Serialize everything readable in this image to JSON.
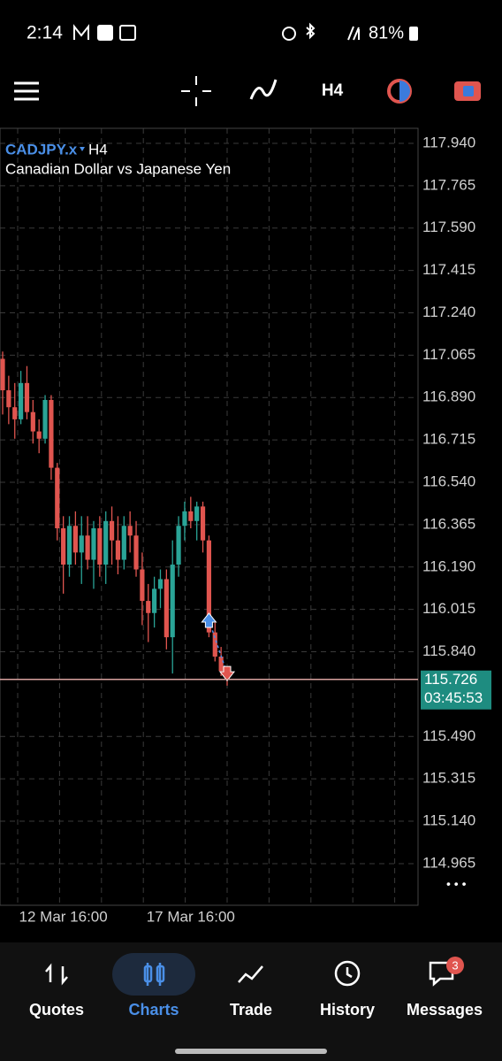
{
  "status_bar": {
    "time": "2:14",
    "battery": "81%"
  },
  "toolbar": {
    "timeframe": "H4"
  },
  "chart": {
    "type": "candlestick",
    "symbol": "CADJPY.x",
    "timeframe": "H4",
    "description": "Canadian Dollar vs Japanese Yen",
    "up_color": "#2aa497",
    "down_color": "#e0554f",
    "grid": true,
    "ylim": [
      114.793,
      118.002
    ],
    "yticks": [
      {
        "value": 117.94,
        "label": "117.940"
      },
      117.765,
      {
        "value": 117.59,
        "label": "117.590"
      },
      117.415,
      {
        "value": 117.24,
        "label": "117.240"
      },
      117.065,
      {
        "value": 116.89,
        "label": "116.890"
      },
      116.715,
      {
        "value": 116.54,
        "label": "116.540"
      },
      116.365,
      {
        "value": 116.19,
        "label": "116.190"
      },
      116.015,
      {
        "value": 115.84,
        "label": "115.840"
      },
      {
        "value": 115.49,
        "label": "115.490"
      },
      115.315,
      {
        "value": 115.14,
        "label": "115.140"
      },
      114.965
    ],
    "categories": [
      null,
      null,
      null,
      null,
      null,
      null,
      null,
      null,
      null,
      null,
      "12 Mar 16:00",
      null,
      null,
      null,
      null,
      null,
      null,
      null,
      null,
      null,
      null,
      null,
      null,
      null,
      null,
      null,
      null,
      null,
      null,
      null,
      null,
      "17 Mar 16:00",
      null,
      null,
      null,
      null,
      null,
      null
    ],
    "candles": [
      [
        117.05,
        117.08,
        116.82,
        116.92
      ],
      [
        116.92,
        116.98,
        116.78,
        116.85
      ],
      [
        116.85,
        116.95,
        116.72,
        116.8
      ],
      [
        116.8,
        117.0,
        116.78,
        116.95
      ],
      [
        116.95,
        117.02,
        116.8,
        116.83
      ],
      [
        116.83,
        116.88,
        116.7,
        116.75
      ],
      [
        116.75,
        116.8,
        116.66,
        116.72
      ],
      [
        116.72,
        116.9,
        116.7,
        116.88
      ],
      [
        116.88,
        116.9,
        116.55,
        116.6
      ],
      [
        116.6,
        116.62,
        116.3,
        116.35
      ],
      [
        116.35,
        116.4,
        116.08,
        116.2
      ],
      [
        116.2,
        116.4,
        116.15,
        116.36
      ],
      [
        116.36,
        116.42,
        116.2,
        116.25
      ],
      [
        116.25,
        116.4,
        116.12,
        116.32
      ],
      [
        116.32,
        116.4,
        116.18,
        116.22
      ],
      [
        116.22,
        116.38,
        116.1,
        116.35
      ],
      [
        116.35,
        116.4,
        116.15,
        116.2
      ],
      [
        116.2,
        116.42,
        116.12,
        116.38
      ],
      [
        116.38,
        116.44,
        116.2,
        116.3
      ],
      [
        116.3,
        116.4,
        116.16,
        116.22
      ],
      [
        116.22,
        116.4,
        116.18,
        116.36
      ],
      [
        116.36,
        116.42,
        116.25,
        116.32
      ],
      [
        116.32,
        116.38,
        116.15,
        116.18
      ],
      [
        116.18,
        116.25,
        115.95,
        116.05
      ],
      [
        116.05,
        116.12,
        115.88,
        116.0
      ],
      [
        116.0,
        116.15,
        115.94,
        116.1
      ],
      [
        116.1,
        116.18,
        116.02,
        116.14
      ],
      [
        116.14,
        116.18,
        115.85,
        115.9
      ],
      [
        115.9,
        116.3,
        115.75,
        116.2
      ],
      [
        116.2,
        116.4,
        116.15,
        116.36
      ],
      [
        116.36,
        116.46,
        116.3,
        116.42
      ],
      [
        116.42,
        116.48,
        116.35,
        116.38
      ],
      [
        116.38,
        116.46,
        116.3,
        116.44
      ],
      [
        116.44,
        116.46,
        116.25,
        116.3
      ],
      [
        116.3,
        116.32,
        115.9,
        115.92
      ],
      [
        115.92,
        115.96,
        115.8,
        115.82
      ],
      [
        115.82,
        115.86,
        115.74,
        115.76
      ],
      [
        115.76,
        115.78,
        115.7,
        115.726
      ]
    ],
    "trade_entry": 115.97,
    "trade_exit": 115.75,
    "last_price": 115.726,
    "countdown": "03:45:53",
    "more": "• • •"
  },
  "nav": {
    "items": [
      "Quotes",
      "Charts",
      "Trade",
      "History",
      "Messages"
    ],
    "badge": "3"
  }
}
